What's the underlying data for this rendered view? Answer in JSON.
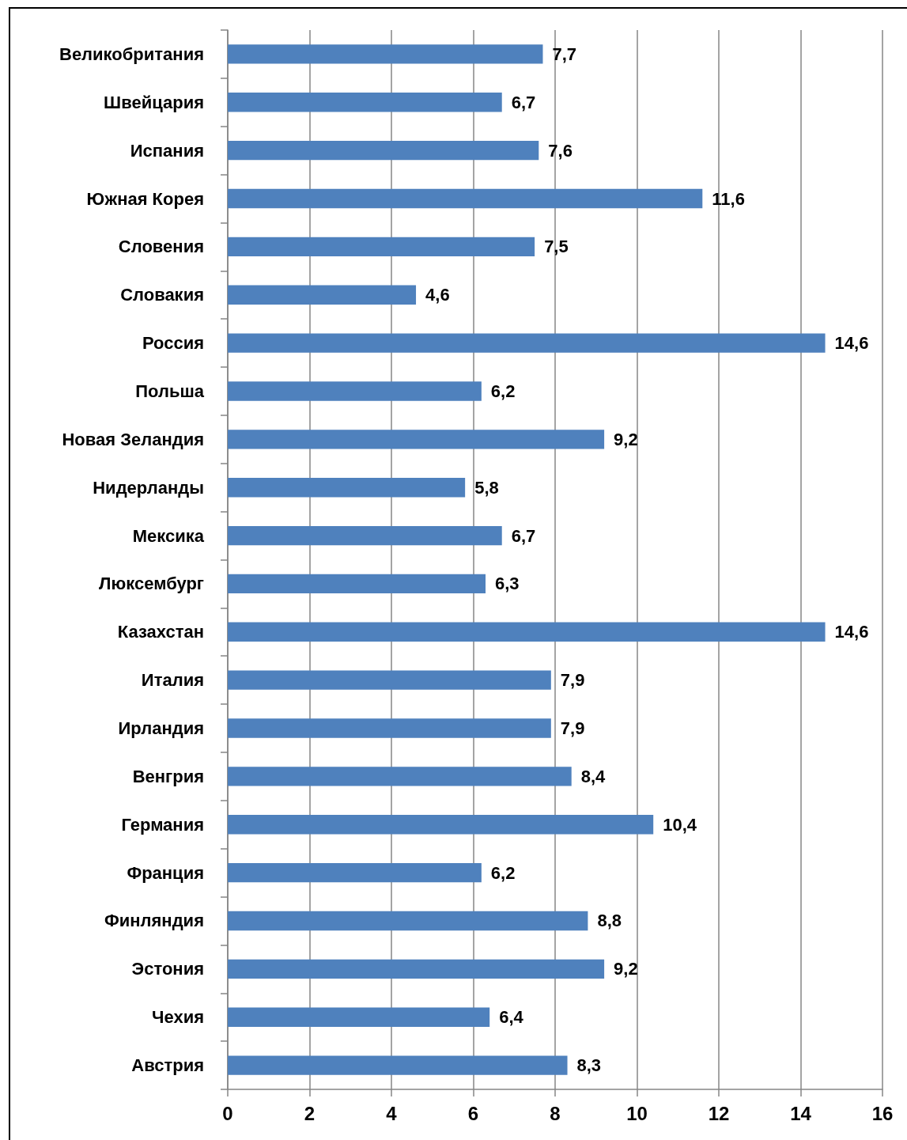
{
  "chart_data": {
    "type": "bar",
    "orientation": "horizontal",
    "categories": [
      "Великобритания",
      "Швейцария",
      "Испания",
      "Южная Корея",
      "Словения",
      "Словакия",
      "Россия",
      "Польша",
      "Новая Зеландия",
      "Нидерланды",
      "Мексика",
      "Люксембург",
      "Казахстан",
      "Италия",
      "Ирландия",
      "Венгрия",
      "Германия",
      "Франция",
      "Финляндия",
      "Эстония",
      "Чехия",
      "Австрия"
    ],
    "values": [
      7.7,
      6.7,
      7.6,
      11.6,
      7.5,
      4.6,
      14.6,
      6.2,
      9.2,
      5.8,
      6.7,
      6.3,
      14.6,
      7.9,
      7.9,
      8.4,
      10.4,
      6.2,
      8.8,
      9.2,
      6.4,
      8.3
    ],
    "value_labels": [
      "7,7",
      "6,7",
      "7,6",
      "11,6",
      "7,5",
      "4,6",
      "14,6",
      "6,2",
      "9,2",
      "5,8",
      "6,7",
      "6,3",
      "14,6",
      "7,9",
      "7,9",
      "8,4",
      "10,4",
      "6,2",
      "8,8",
      "9,2",
      "6,4",
      "8,3"
    ],
    "color": "#4f81bd",
    "xlim": [
      0,
      16
    ],
    "xticks": [
      0,
      2,
      4,
      6,
      8,
      10,
      12,
      14,
      16
    ],
    "grid": "x"
  }
}
